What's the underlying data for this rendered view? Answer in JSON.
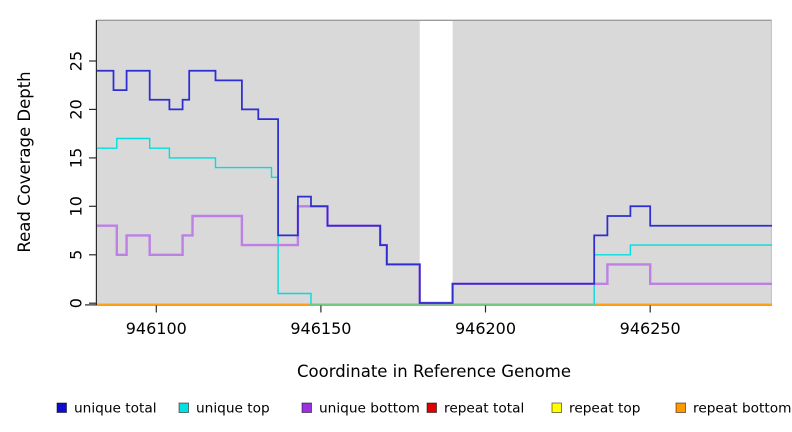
{
  "chart_data": {
    "type": "line",
    "subtype": "step-coverage",
    "title": "",
    "xlabel": "Coordinate in Reference Genome",
    "ylabel": "Read Coverage Depth",
    "xlim": [
      946082,
      946287
    ],
    "ylim": [
      0,
      29.2
    ],
    "x_ticks": [
      946100,
      946150,
      946200,
      946250
    ],
    "y_ticks": [
      0,
      5,
      10,
      15,
      20,
      25
    ],
    "grid": false,
    "legend_position": "bottom",
    "panel_background": "#d9d9d9",
    "panel_border_color": "#9b9b9b",
    "axis_color": "#2a2a2a",
    "masked_region": {
      "start": 946180,
      "end": 946190,
      "fill": "#ffffff"
    },
    "zero_line_overlap_color": "#74c97c",
    "series": [
      {
        "name": "unique total",
        "color": "#2d2dd2",
        "legend_fill": "#0d0dd0",
        "points": [
          [
            946082,
            24
          ],
          [
            946087,
            22
          ],
          [
            946091,
            24
          ],
          [
            946098,
            21
          ],
          [
            946104,
            20
          ],
          [
            946108,
            21
          ],
          [
            946110,
            24
          ],
          [
            946118,
            23
          ],
          [
            946126,
            20
          ],
          [
            946131,
            19
          ],
          [
            946137,
            7
          ],
          [
            946143,
            11
          ],
          [
            946147,
            10
          ],
          [
            946152,
            8
          ],
          [
            946168,
            6
          ],
          [
            946170,
            4
          ],
          [
            946180,
            0
          ],
          [
            946190,
            2
          ],
          [
            946233,
            7
          ],
          [
            946237,
            9
          ],
          [
            946244,
            10
          ],
          [
            946250,
            8
          ],
          [
            946287,
            8
          ]
        ]
      },
      {
        "name": "unique top",
        "color": "#00dede",
        "legend_fill": "#00e0e0",
        "points": [
          [
            946082,
            16
          ],
          [
            946088,
            17
          ],
          [
            946098,
            16
          ],
          [
            946104,
            15
          ],
          [
            946118,
            14
          ],
          [
            946135,
            13
          ],
          [
            946137,
            1
          ],
          [
            946147,
            0
          ],
          [
            946233,
            5
          ],
          [
            946244,
            6
          ],
          [
            946287,
            6
          ]
        ]
      },
      {
        "name": "unique bottom",
        "color": "#bd80e4",
        "legend_fill": "#9c2fe0",
        "points": [
          [
            946082,
            8
          ],
          [
            946088,
            5
          ],
          [
            946091,
            7
          ],
          [
            946098,
            5
          ],
          [
            946108,
            7
          ],
          [
            946111,
            9
          ],
          [
            946126,
            6
          ],
          [
            946143,
            10
          ],
          [
            946152,
            8
          ],
          [
            946168,
            6
          ],
          [
            946170,
            4
          ],
          [
            946180,
            0
          ],
          [
            946190,
            2
          ],
          [
            946237,
            4
          ],
          [
            946250,
            2
          ],
          [
            946287,
            2
          ]
        ]
      },
      {
        "name": "repeat total",
        "color": "#d40000",
        "legend_fill": "#dd0000",
        "points": [
          [
            946082,
            0
          ],
          [
            946287,
            0
          ]
        ]
      },
      {
        "name": "repeat top",
        "color": "#f0f000",
        "legend_fill": "#ffff00",
        "points": [
          [
            946082,
            0
          ],
          [
            946287,
            0
          ]
        ]
      },
      {
        "name": "repeat bottom",
        "color": "#ffa113",
        "legend_fill": "#ff9900",
        "points": [
          [
            946082,
            0
          ],
          [
            946287,
            0
          ]
        ]
      }
    ]
  }
}
